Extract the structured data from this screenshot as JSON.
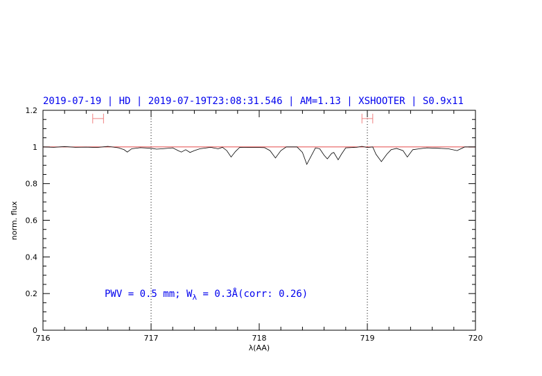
{
  "chart_data": {
    "type": "line",
    "title": "2019-07-19 | HD | 2019-07-19T23:08:31.546 | AM=1.13 | XSHOOTER | S0.9x11",
    "xlabel": "λ(AA)",
    "ylabel": "norm. flux",
    "xlim": [
      716,
      720
    ],
    "ylim": [
      0,
      1.2
    ],
    "xticks": [
      "716",
      "717",
      "718",
      "719",
      "720"
    ],
    "yticks": [
      "0",
      "0.2",
      "0.4",
      "0.6",
      "0.8",
      "1",
      "1.2"
    ],
    "grid": false,
    "annotation": {
      "prefix": "PWV = 0.5 mm; W",
      "sub": "λ",
      "suffix": " = 0.3Å(corr: 0.26)"
    },
    "reference_line": {
      "y": 1.0,
      "color": "#e03030"
    },
    "vertical_dotted_lines": [
      717,
      719
    ],
    "error_bars": [
      {
        "x": [
          716.46,
          716.56
        ],
        "y": 1.155
      },
      {
        "x": [
          718.95,
          719.05
        ],
        "y": 1.155
      }
    ],
    "colors": {
      "spectrum": "#000000",
      "title": "#0000ee",
      "error_bar": "#f08080"
    },
    "series": [
      {
        "x": [
          716.0,
          716.1,
          716.2,
          716.3,
          716.4,
          716.5,
          716.6,
          716.7,
          716.75,
          716.78,
          716.82,
          716.9,
          717.0,
          717.05,
          717.1,
          717.2,
          717.25,
          717.28,
          717.32,
          717.36,
          717.4,
          717.45,
          717.55,
          717.62,
          717.66,
          717.7,
          717.74,
          717.78,
          717.82,
          717.9,
          718.0,
          718.05,
          718.1,
          718.15,
          718.2,
          718.25,
          718.35,
          718.4,
          718.44,
          718.48,
          718.52,
          718.56,
          718.6,
          718.63,
          718.67,
          718.69,
          718.73,
          718.76,
          718.8,
          718.9,
          718.95,
          719.0,
          719.05,
          719.08,
          719.13,
          719.18,
          719.22,
          719.27,
          719.33,
          719.37,
          719.42,
          719.48,
          719.55,
          719.65,
          719.75,
          719.83,
          719.9,
          720.0
        ],
        "y": [
          1.0,
          0.998,
          1.002,
          0.998,
          0.999,
          0.997,
          1.003,
          0.995,
          0.985,
          0.972,
          0.99,
          0.996,
          0.993,
          0.988,
          0.99,
          0.995,
          0.98,
          0.972,
          0.985,
          0.97,
          0.98,
          0.99,
          0.998,
          0.99,
          0.998,
          0.98,
          0.945,
          0.975,
          0.998,
          0.997,
          0.997,
          0.996,
          0.98,
          0.94,
          0.98,
          1.0,
          1.0,
          0.97,
          0.905,
          0.95,
          0.995,
          0.99,
          0.955,
          0.935,
          0.965,
          0.97,
          0.93,
          0.96,
          0.995,
          0.998,
          1.003,
          0.997,
          1.0,
          0.96,
          0.92,
          0.96,
          0.985,
          0.992,
          0.98,
          0.945,
          0.985,
          0.99,
          0.995,
          0.993,
          0.99,
          0.98,
          1.0,
          1.0
        ]
      }
    ]
  }
}
